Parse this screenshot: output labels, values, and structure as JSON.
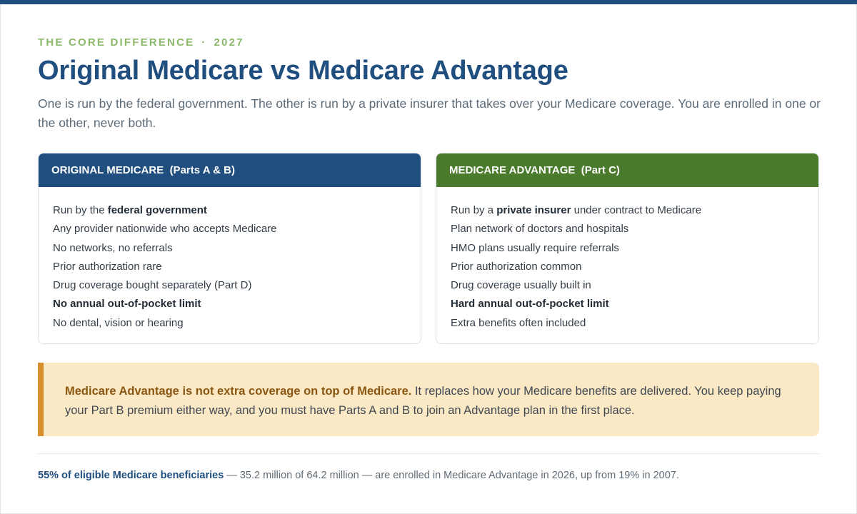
{
  "eyebrow": {
    "label": "THE CORE DIFFERENCE",
    "separator": "·",
    "year": "2027"
  },
  "title": "Original Medicare vs Medicare Advantage",
  "subtitle": "One is run by the federal government. The other is run by a private insurer that takes over your Medicare coverage. You are enrolled in one or the other, never both.",
  "original": {
    "header": "ORIGINAL MEDICARE  (Parts A & B)",
    "items": [
      {
        "pre": "Run by the ",
        "bold": "federal government",
        "post": ""
      },
      {
        "pre": "Any provider nationwide who accepts Medicare",
        "bold": "",
        "post": ""
      },
      {
        "pre": "No networks, no referrals",
        "bold": "",
        "post": ""
      },
      {
        "pre": "Prior authorization rare",
        "bold": "",
        "post": ""
      },
      {
        "pre": "Drug coverage bought separately (Part D)",
        "bold": "",
        "post": ""
      },
      {
        "pre": "",
        "bold": "No annual out-of-pocket limit",
        "post": ""
      },
      {
        "pre": "No dental, vision or hearing",
        "bold": "",
        "post": ""
      }
    ]
  },
  "advantage": {
    "header": "MEDICARE ADVANTAGE  (Part C)",
    "items": [
      {
        "pre": "Run by a ",
        "bold": "private insurer",
        "post": " under contract to Medicare"
      },
      {
        "pre": "Plan network of doctors and hospitals",
        "bold": "",
        "post": ""
      },
      {
        "pre": "HMO plans usually require referrals",
        "bold": "",
        "post": ""
      },
      {
        "pre": "Prior authorization common",
        "bold": "",
        "post": ""
      },
      {
        "pre": "Drug coverage usually built in",
        "bold": "",
        "post": ""
      },
      {
        "pre": "",
        "bold": "Hard annual out-of-pocket limit",
        "post": ""
      },
      {
        "pre": "Extra benefits often included",
        "bold": "",
        "post": ""
      }
    ]
  },
  "callout": {
    "lead": "Medicare Advantage is not extra coverage on top of Medicare.",
    "body": " It replaces how your Medicare benefits are delivered. You keep paying your Part B premium either way, and you must have Parts A and B to join an Advantage plan in the first place."
  },
  "footnote": {
    "stat": "55% of eligible Medicare beneficiaries",
    "body": " — 35.2 million of 64.2 million — are enrolled in Medicare Advantage in 2026, up from 19% in 2007."
  },
  "colors": {
    "navy": "#1f4e7f",
    "green": "#4a7a2b",
    "eyebrow": "#8db86a",
    "callout_bg": "#fbe8c4",
    "callout_accent": "#d78f2b"
  }
}
